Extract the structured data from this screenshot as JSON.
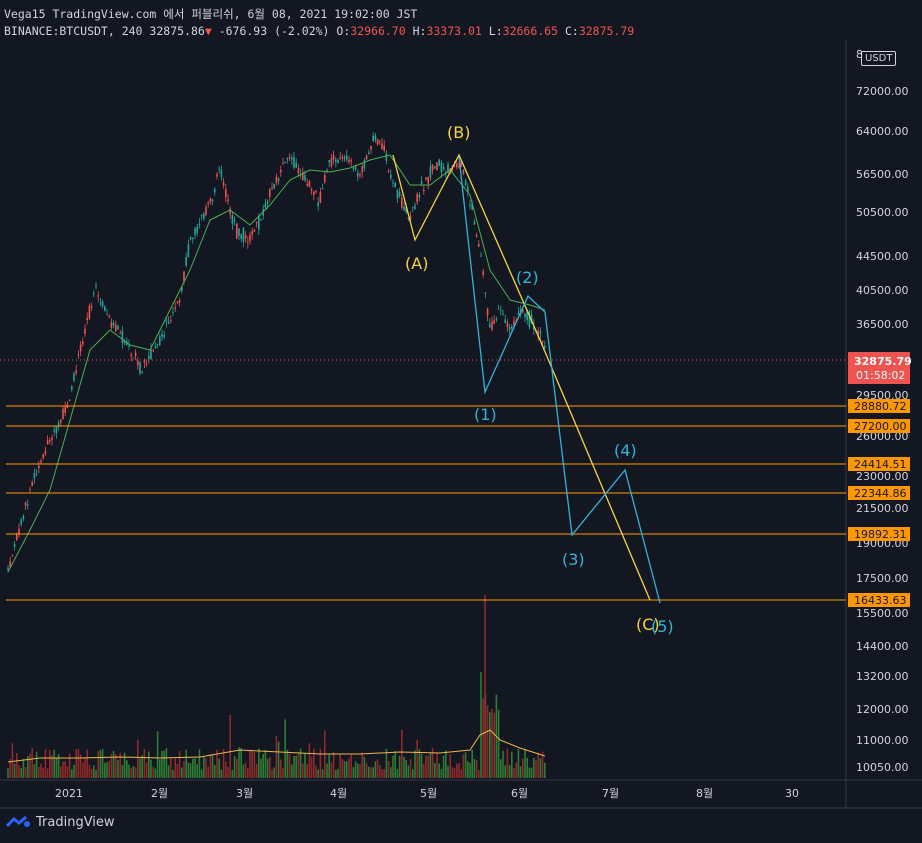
{
  "header": {
    "line1": "Vega15 TradingView.com 에서 퍼블리쉬, 6월 08, 2021 19:02:00 JST",
    "symbol": "BINANCE:BTCUSDT, 240",
    "last": "32875.86",
    "change": "-676.93 (-2.02%)",
    "o_label": "O:",
    "o": "32966.70",
    "h_label": "H:",
    "h": "33373.01",
    "l_label": "L:",
    "l": "32666.65",
    "c_label": "C:",
    "c": "32875.79"
  },
  "currency_badge": "USDT",
  "price_axis": {
    "top_partial": "8",
    "labels": [
      "72000.00",
      "64000.00",
      "56500.00",
      "50500.00",
      "44500.00",
      "40500.00",
      "36500.00",
      "29500.00",
      "26000.00",
      "23000.00",
      "21500.00",
      "19000.00",
      "17500.00",
      "15500.00",
      "14400.00",
      "13200.00",
      "12000.00",
      "11000.00",
      "10050.00"
    ]
  },
  "current_price": {
    "value": "32875.79",
    "countdown": "01:58:02",
    "color": "#ef5350"
  },
  "levels": [
    "28880.72",
    "27200.00",
    "24414.51",
    "22344.86",
    "19892.31",
    "16433.63"
  ],
  "level_color": "#ff9800",
  "time_axis": [
    "2021",
    "2월",
    "3월",
    "4월",
    "5월",
    "6월",
    "7월",
    "8월",
    "30"
  ],
  "wave_labels": {
    "abc": [
      "(A)",
      "(B)",
      "(C)"
    ],
    "impulse": [
      "(1)",
      "(2)",
      "(3)",
      "(4)",
      "(5)"
    ]
  },
  "colors": {
    "abc": "#f5d442",
    "impulse": "#2fb5d6",
    "up": "#26a69a",
    "down": "#ef5350",
    "ma": "#f0b64a",
    "ema": "#4caf50"
  },
  "brand": "TradingView"
}
